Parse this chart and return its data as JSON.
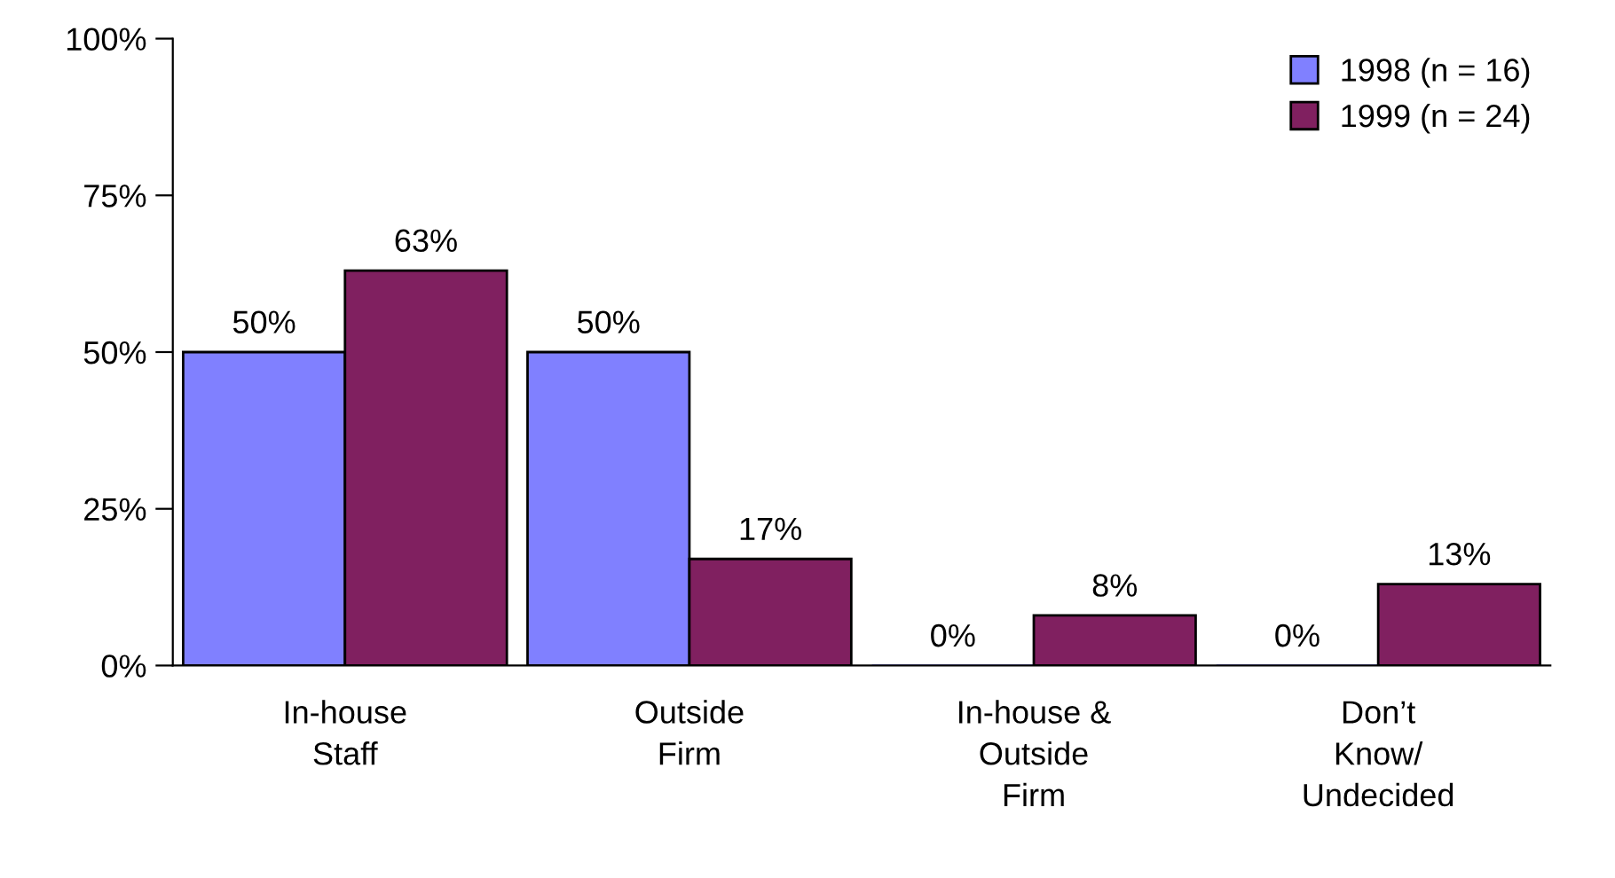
{
  "chart_data": {
    "type": "bar",
    "categories": [
      "In-house\nStaff",
      "Outside\nFirm",
      "In-house &\nOutside\nFirm",
      "Don’t\nKnow/\nUndecided"
    ],
    "series": [
      {
        "name": "1998 (n = 16)",
        "color": "#8080ff",
        "values": [
          50,
          50,
          0,
          0
        ],
        "value_labels": [
          "50%",
          "50%",
          "0%",
          "0%"
        ]
      },
      {
        "name": "1999 (n = 24)",
        "color": "#802060",
        "values": [
          63,
          17,
          8,
          13
        ],
        "value_labels": [
          "63%",
          "17%",
          "8%",
          "13%"
        ]
      }
    ],
    "ylim": [
      0,
      100
    ],
    "yticks": [
      {
        "value": 0,
        "label": "0%"
      },
      {
        "value": 25,
        "label": "25%"
      },
      {
        "value": 50,
        "label": "50%"
      },
      {
        "value": 75,
        "label": "75%"
      },
      {
        "value": 100,
        "label": "100%"
      }
    ],
    "grid": false,
    "legend": "top right"
  }
}
